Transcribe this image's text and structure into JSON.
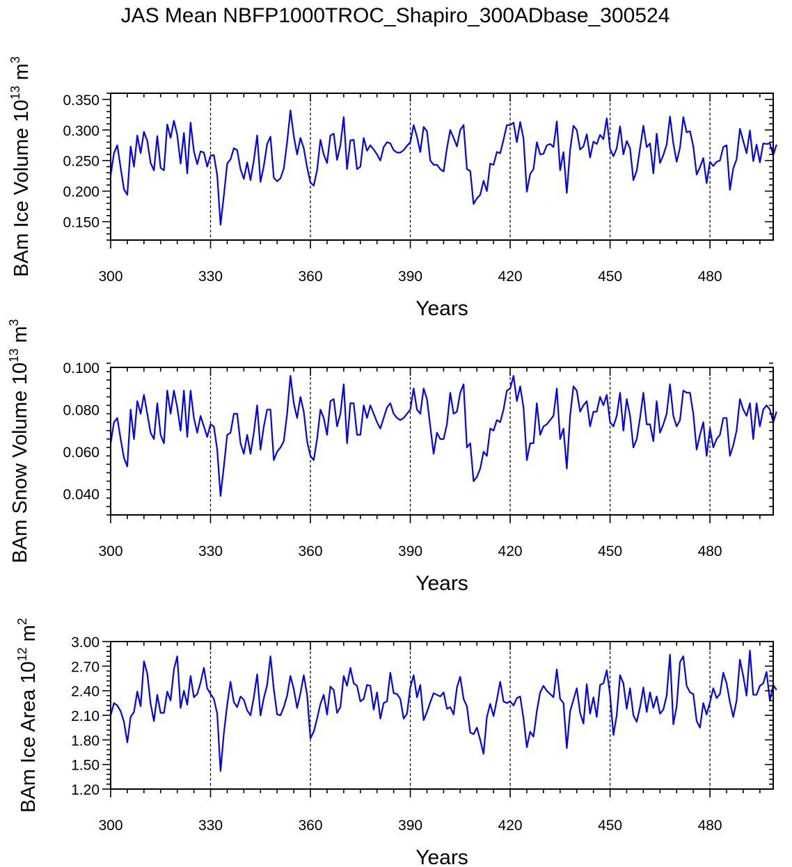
{
  "figure": {
    "title": "JAS Mean NBFP1000TROC_Shapiro_300ADbase_300524"
  },
  "chart_data": [
    {
      "type": "line",
      "name": "ice-volume",
      "xlabel": "Years",
      "ylabel": "BAm Ice Volume",
      "yunit": {
        "base": "10",
        "exp": "13",
        "unit": "m",
        "unit_exp": "3"
      },
      "xlim": [
        300,
        499
      ],
      "ylim": [
        0.12,
        0.36
      ],
      "x_ticks": [
        300,
        330,
        360,
        390,
        420,
        450,
        480
      ],
      "x_tick_labels": [
        "300",
        "330",
        "360",
        "390",
        "420",
        "450",
        "480"
      ],
      "y_ticks": [
        0.15,
        0.2,
        0.25,
        0.3,
        0.35
      ],
      "y_tick_labels": [
        "0.150",
        "0.200",
        "0.250",
        "0.300",
        "0.350"
      ],
      "ref_lines_x": [
        330,
        360,
        390,
        420,
        450,
        480
      ],
      "series": [
        {
          "name": "ice volume",
          "color": "#0000ff",
          "x_start": 300,
          "x_step": 1,
          "values": [
            0.226,
            0.262,
            0.275,
            0.238,
            0.203,
            0.194,
            0.273,
            0.24,
            0.291,
            0.262,
            0.297,
            0.282,
            0.246,
            0.234,
            0.29,
            0.238,
            0.234,
            0.309,
            0.287,
            0.315,
            0.292,
            0.245,
            0.295,
            0.229,
            0.312,
            0.265,
            0.244,
            0.265,
            0.263,
            0.24,
            0.258,
            0.259,
            0.226,
            0.145,
            0.193,
            0.245,
            0.252,
            0.27,
            0.267,
            0.236,
            0.22,
            0.247,
            0.218,
            0.25,
            0.291,
            0.215,
            0.241,
            0.277,
            0.289,
            0.222,
            0.216,
            0.221,
            0.237,
            0.28,
            0.332,
            0.29,
            0.26,
            0.287,
            0.27,
            0.239,
            0.214,
            0.209,
            0.234,
            0.284,
            0.26,
            0.246,
            0.291,
            0.294,
            0.251,
            0.275,
            0.321,
            0.236,
            0.283,
            0.284,
            0.236,
            0.24,
            0.287,
            0.266,
            0.275,
            0.268,
            0.26,
            0.25,
            0.272,
            0.28,
            0.278,
            0.267,
            0.263,
            0.263,
            0.267,
            0.274,
            0.28,
            0.308,
            0.289,
            0.264,
            0.305,
            0.298,
            0.25,
            0.243,
            0.243,
            0.236,
            0.232,
            0.27,
            0.3,
            0.287,
            0.273,
            0.3,
            0.308,
            0.236,
            0.233,
            0.179,
            0.188,
            0.194,
            0.217,
            0.2,
            0.245,
            0.243,
            0.264,
            0.262,
            0.284,
            0.308,
            0.308,
            0.312,
            0.28,
            0.313,
            0.286,
            0.199,
            0.228,
            0.236,
            0.28,
            0.26,
            0.261,
            0.275,
            0.277,
            0.272,
            0.314,
            0.234,
            0.264,
            0.197,
            0.267,
            0.307,
            0.3,
            0.268,
            0.273,
            0.293,
            0.255,
            0.281,
            0.277,
            0.292,
            0.285,
            0.319,
            0.269,
            0.257,
            0.27,
            0.306,
            0.26,
            0.282,
            0.27,
            0.218,
            0.233,
            0.27,
            0.307,
            0.272,
            0.278,
            0.229,
            0.294,
            0.246,
            0.259,
            0.276,
            0.322,
            0.278,
            0.248,
            0.271,
            0.321,
            0.296,
            0.298,
            0.273,
            0.227,
            0.239,
            0.254,
            0.213,
            0.248,
            0.241,
            0.248,
            0.25,
            0.272,
            0.275,
            0.202,
            0.237,
            0.252,
            0.302,
            0.282,
            0.262,
            0.299,
            0.249,
            0.276,
            0.247,
            0.278,
            0.277,
            0.278,
            0.259,
            0.276
          ]
        }
      ]
    },
    {
      "type": "line",
      "name": "snow-volume",
      "xlabel": "Years",
      "ylabel": "BAm Snow Volume",
      "yunit": {
        "base": "10",
        "exp": "13",
        "unit": "m",
        "unit_exp": "3"
      },
      "xlim": [
        300,
        499
      ],
      "ylim": [
        0.03,
        0.1
      ],
      "x_ticks": [
        300,
        330,
        360,
        390,
        420,
        450,
        480
      ],
      "x_tick_labels": [
        "300",
        "330",
        "360",
        "390",
        "420",
        "450",
        "480"
      ],
      "y_ticks": [
        0.04,
        0.06,
        0.08,
        0.1
      ],
      "y_tick_labels": [
        "0.040",
        "0.060",
        "0.080",
        "0.100"
      ],
      "ref_lines_x": [
        330,
        360,
        390,
        420,
        450,
        480
      ],
      "series": [
        {
          "name": "snow volume",
          "color": "#0000ff",
          "x_start": 300,
          "x_step": 1,
          "values": [
            0.064,
            0.074,
            0.076,
            0.066,
            0.057,
            0.053,
            0.08,
            0.066,
            0.084,
            0.078,
            0.087,
            0.078,
            0.069,
            0.066,
            0.083,
            0.068,
            0.064,
            0.089,
            0.078,
            0.089,
            0.081,
            0.07,
            0.089,
            0.067,
            0.089,
            0.076,
            0.069,
            0.077,
            0.072,
            0.067,
            0.073,
            0.072,
            0.061,
            0.039,
            0.053,
            0.068,
            0.069,
            0.078,
            0.078,
            0.064,
            0.059,
            0.068,
            0.059,
            0.069,
            0.082,
            0.061,
            0.072,
            0.08,
            0.08,
            0.056,
            0.06,
            0.062,
            0.065,
            0.078,
            0.096,
            0.083,
            0.076,
            0.086,
            0.079,
            0.065,
            0.058,
            0.056,
            0.066,
            0.08,
            0.076,
            0.068,
            0.084,
            0.085,
            0.072,
            0.078,
            0.092,
            0.064,
            0.083,
            0.083,
            0.068,
            0.068,
            0.082,
            0.076,
            0.082,
            0.078,
            0.074,
            0.071,
            0.076,
            0.081,
            0.083,
            0.078,
            0.076,
            0.075,
            0.076,
            0.078,
            0.08,
            0.09,
            0.08,
            0.078,
            0.09,
            0.085,
            0.072,
            0.059,
            0.069,
            0.066,
            0.066,
            0.073,
            0.088,
            0.078,
            0.079,
            0.088,
            0.092,
            0.062,
            0.064,
            0.046,
            0.048,
            0.052,
            0.06,
            0.058,
            0.071,
            0.07,
            0.075,
            0.074,
            0.08,
            0.089,
            0.09,
            0.096,
            0.084,
            0.091,
            0.081,
            0.056,
            0.064,
            0.064,
            0.083,
            0.068,
            0.072,
            0.073,
            0.075,
            0.077,
            0.09,
            0.066,
            0.071,
            0.052,
            0.077,
            0.091,
            0.089,
            0.079,
            0.082,
            0.084,
            0.072,
            0.079,
            0.079,
            0.086,
            0.082,
            0.087,
            0.074,
            0.072,
            0.077,
            0.088,
            0.07,
            0.085,
            0.077,
            0.062,
            0.066,
            0.076,
            0.088,
            0.073,
            0.073,
            0.065,
            0.084,
            0.069,
            0.073,
            0.078,
            0.092,
            0.077,
            0.072,
            0.075,
            0.089,
            0.088,
            0.088,
            0.078,
            0.061,
            0.068,
            0.074,
            0.058,
            0.071,
            0.062,
            0.066,
            0.068,
            0.076,
            0.076,
            0.058,
            0.063,
            0.07,
            0.085,
            0.08,
            0.077,
            0.083,
            0.066,
            0.083,
            0.072,
            0.08,
            0.082,
            0.08,
            0.074,
            0.079
          ]
        }
      ]
    },
    {
      "type": "line",
      "name": "ice-area",
      "xlabel": "Years",
      "ylabel": "BAm Ice Area",
      "yunit": {
        "base": "10",
        "exp": "12",
        "unit": "m",
        "unit_exp": "2"
      },
      "xlim": [
        300,
        499
      ],
      "ylim": [
        1.2,
        3.0
      ],
      "x_ticks": [
        300,
        330,
        360,
        390,
        420,
        450,
        480
      ],
      "x_tick_labels": [
        "300",
        "330",
        "360",
        "390",
        "420",
        "450",
        "480"
      ],
      "y_ticks": [
        1.2,
        1.5,
        1.8,
        2.1,
        2.4,
        2.7,
        3.0
      ],
      "y_tick_labels": [
        "1.20",
        "1.50",
        "1.80",
        "2.10",
        "2.40",
        "2.70",
        "3.00"
      ],
      "ref_lines_x": [
        330,
        360,
        390,
        420,
        450,
        480
      ],
      "series": [
        {
          "name": "ice area",
          "color": "#0000ff",
          "x_start": 300,
          "x_step": 1,
          "values": [
            2.1,
            2.25,
            2.22,
            2.15,
            2.02,
            1.77,
            2.08,
            2.14,
            2.39,
            2.21,
            2.76,
            2.61,
            2.24,
            2.03,
            2.35,
            2.13,
            2.13,
            2.39,
            2.28,
            2.66,
            2.82,
            2.19,
            2.4,
            2.23,
            2.58,
            2.32,
            2.36,
            2.5,
            2.68,
            2.43,
            2.36,
            2.3,
            2.12,
            1.42,
            1.88,
            2.23,
            2.51,
            2.26,
            2.2,
            2.33,
            2.29,
            2.16,
            2.1,
            2.32,
            2.6,
            2.1,
            2.31,
            2.47,
            2.82,
            2.42,
            2.11,
            2.1,
            2.2,
            2.34,
            2.58,
            2.42,
            2.19,
            2.37,
            2.59,
            2.35,
            1.82,
            1.9,
            2.06,
            2.24,
            2.35,
            2.11,
            2.45,
            2.41,
            2.13,
            2.2,
            2.58,
            2.46,
            2.68,
            2.49,
            2.46,
            2.27,
            2.3,
            2.47,
            2.46,
            2.17,
            2.38,
            2.06,
            2.25,
            2.27,
            2.62,
            2.37,
            2.36,
            2.3,
            2.06,
            2.12,
            2.44,
            2.59,
            2.32,
            2.47,
            2.04,
            2.14,
            2.26,
            2.37,
            2.35,
            2.33,
            2.38,
            2.18,
            2.2,
            2.11,
            2.44,
            2.57,
            2.3,
            2.21,
            1.89,
            1.87,
            1.95,
            1.8,
            1.63,
            2.08,
            2.24,
            2.09,
            2.29,
            2.51,
            2.27,
            2.25,
            2.27,
            2.22,
            2.31,
            2.33,
            2.06,
            1.71,
            1.9,
            1.84,
            2.15,
            2.38,
            2.46,
            2.4,
            2.36,
            2.32,
            2.66,
            2.3,
            2.25,
            1.7,
            2.15,
            2.29,
            2.43,
            2.13,
            2.0,
            2.48,
            2.12,
            2.32,
            2.08,
            2.47,
            2.49,
            2.65,
            2.35,
            1.86,
            2.1,
            2.59,
            2.49,
            2.18,
            2.43,
            2.1,
            2.02,
            2.2,
            2.44,
            2.14,
            2.38,
            2.19,
            2.33,
            2.12,
            2.17,
            2.34,
            2.84,
            1.99,
            2.21,
            2.75,
            2.82,
            2.46,
            2.38,
            2.36,
            2.03,
            1.95,
            2.25,
            2.11,
            2.26,
            2.43,
            2.31,
            2.36,
            2.62,
            2.49,
            2.26,
            2.08,
            2.28,
            2.78,
            2.58,
            2.34,
            2.89,
            2.35,
            2.35,
            2.46,
            2.49,
            2.63,
            2.28,
            2.47,
            2.41
          ]
        }
      ]
    }
  ]
}
